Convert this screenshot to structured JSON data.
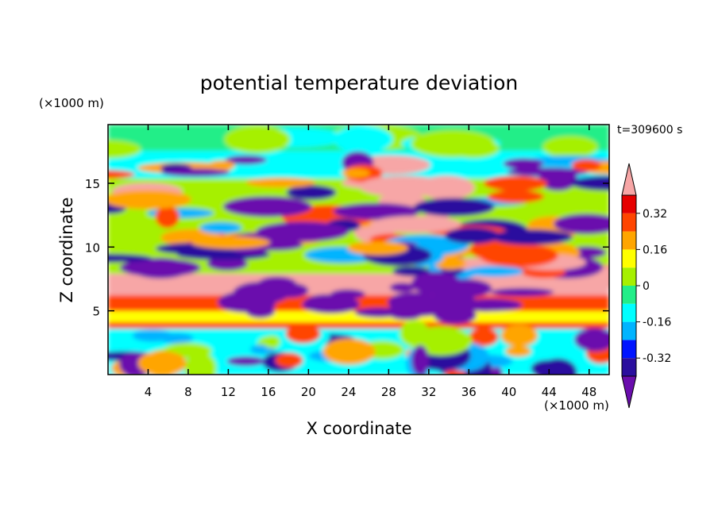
{
  "chart_data": {
    "type": "heatmap",
    "title": "potential temperature deviation",
    "xlabel": "X coordinate",
    "ylabel": "Z coordinate",
    "x_unit": "(×1000 m)",
    "y_unit": "(×1000 m)",
    "time_label": "t=309600 s",
    "xlim": [
      0,
      50
    ],
    "ylim": [
      0,
      19.6
    ],
    "x_ticks": [
      4,
      8,
      12,
      16,
      20,
      24,
      28,
      32,
      36,
      40,
      44,
      48
    ],
    "y_ticks": [
      5,
      10,
      15
    ],
    "colorbar": {
      "levels": [
        -0.4,
        -0.32,
        -0.24,
        -0.16,
        -0.08,
        0,
        0.08,
        0.16,
        0.24,
        0.32,
        0.4
      ],
      "tick_labels": [
        "0.32",
        "0.16",
        "0",
        "-0.16",
        "-0.32"
      ],
      "tick_values": [
        0.32,
        0.16,
        0,
        -0.16,
        -0.32
      ],
      "colors": [
        "#6a0dad",
        "#2a0e9e",
        "#0014ff",
        "#00b4ff",
        "#00ffff",
        "#22ee88",
        "#a6f000",
        "#ffff00",
        "#ffa500",
        "#ff4500",
        "#e60000",
        "#f7a6a6"
      ],
      "extend": "both"
    }
  }
}
